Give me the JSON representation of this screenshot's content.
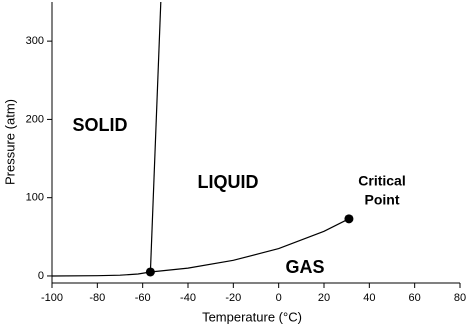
{
  "chart_data": {
    "type": "line",
    "xlabel": "Temperature (°C)",
    "ylabel": "Pressure (atm)",
    "xlim": [
      -100,
      80
    ],
    "ylim": [
      -9,
      350
    ],
    "xticks": [
      -100,
      -80,
      -60,
      -40,
      -20,
      0,
      20,
      40,
      60,
      80
    ],
    "yticks": [
      0,
      100,
      200,
      300
    ],
    "series": [
      {
        "color": "#000000",
        "x": [
          -100,
          -80,
          -70,
          -62,
          -56.6
        ],
        "values": [
          0,
          0.3,
          1,
          2.5,
          5.1
        ]
      },
      {
        "color": "#000000",
        "x": [
          -56.6,
          -40,
          -20,
          0,
          20,
          31
        ],
        "values": [
          5.1,
          10,
          20,
          35,
          57,
          73
        ]
      },
      {
        "color": "#000000",
        "x": [
          -56.6,
          -52
        ],
        "values": [
          5.1,
          350
        ]
      }
    ],
    "markers": {
      "color": "#000000",
      "x": [
        -56.6,
        31
      ],
      "values": [
        5.1,
        73
      ]
    },
    "annotations": [
      "SOLID",
      "LIQUID",
      "GAS",
      "Critical",
      "Point"
    ]
  }
}
